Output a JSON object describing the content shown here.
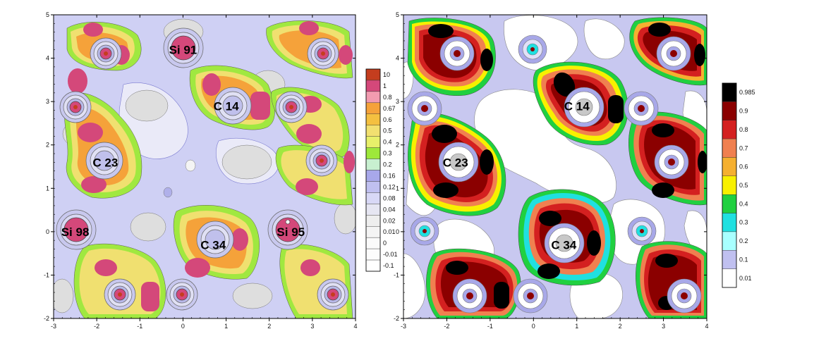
{
  "chart_data": [
    {
      "type": "heatmap",
      "title": "",
      "xlabel": "",
      "ylabel": "",
      "xlim": [
        -3,
        4
      ],
      "ylim": [
        -2,
        5
      ],
      "xticks": [
        "-3",
        "-2",
        "-1",
        "0",
        "1",
        "2",
        "3",
        "4"
      ],
      "yticks": [
        "-2",
        "-1",
        "0",
        "1",
        "2",
        "3",
        "4",
        "5"
      ],
      "atoms": [
        {
          "label": "Si 91",
          "x": 0.0,
          "y": 4.2
        },
        {
          "label": "C 14",
          "x": 1.0,
          "y": 2.9
        },
        {
          "label": "C 23",
          "x": -1.8,
          "y": 1.6
        },
        {
          "label": "Si 98",
          "x": -2.5,
          "y": 0.0
        },
        {
          "label": "C 34",
          "x": 0.7,
          "y": -0.3
        },
        {
          "label": "Si 95",
          "x": 2.5,
          "y": 0.0
        }
      ],
      "colorbar": {
        "levels": [
          "10",
          "1",
          "0.8",
          "0.67",
          "0.6",
          "0.5",
          "0.4",
          "0.3",
          "0.2",
          "0.16",
          "0.12",
          "0.08",
          "0.04",
          "0.02",
          "0.01",
          "0",
          "-0.01",
          "-0.1"
        ],
        "colors": [
          "#c43d1e",
          "#d4487a",
          "#f29bb0",
          "#f5a23a",
          "#f4c040",
          "#f2e070",
          "#e8f06a",
          "#9ee83a",
          "#c8f0d0",
          "#a8a8ea",
          "#c0c0f0",
          "#d8d8f6",
          "#e6e6f2",
          "#eeeeee",
          "#f4f4f4",
          "#fafafa",
          "#fcfcfc",
          "#ffffff"
        ]
      }
    },
    {
      "type": "heatmap",
      "title": "",
      "xlabel": "",
      "ylabel": "",
      "xlim": [
        -3,
        4
      ],
      "ylim": [
        -2,
        5
      ],
      "xticks": [
        "-3",
        "-2",
        "-1",
        "0",
        "1",
        "2",
        "3",
        "4"
      ],
      "yticks": [
        "-2",
        "-1",
        "0",
        "1",
        "2",
        "3",
        "4",
        "5"
      ],
      "atoms": [
        {
          "label": "C 14",
          "x": 1.0,
          "y": 2.9
        },
        {
          "label": "C 23",
          "x": -1.8,
          "y": 1.6
        },
        {
          "label": "C 34",
          "x": 0.7,
          "y": -0.3
        }
      ],
      "colorbar": {
        "levels": [
          "0.985",
          "0.9",
          "0.8",
          "0.7",
          "0.6",
          "0.5",
          "0.4",
          "0.3",
          "0.2",
          "0.1",
          "0.01"
        ],
        "colors": [
          "#000000",
          "#8b0000",
          "#d42020",
          "#f08050",
          "#f5b030",
          "#f8f000",
          "#20d040",
          "#20e0e0",
          "#a8ffff",
          "#c0c0f0",
          "#ffffff"
        ]
      }
    }
  ]
}
